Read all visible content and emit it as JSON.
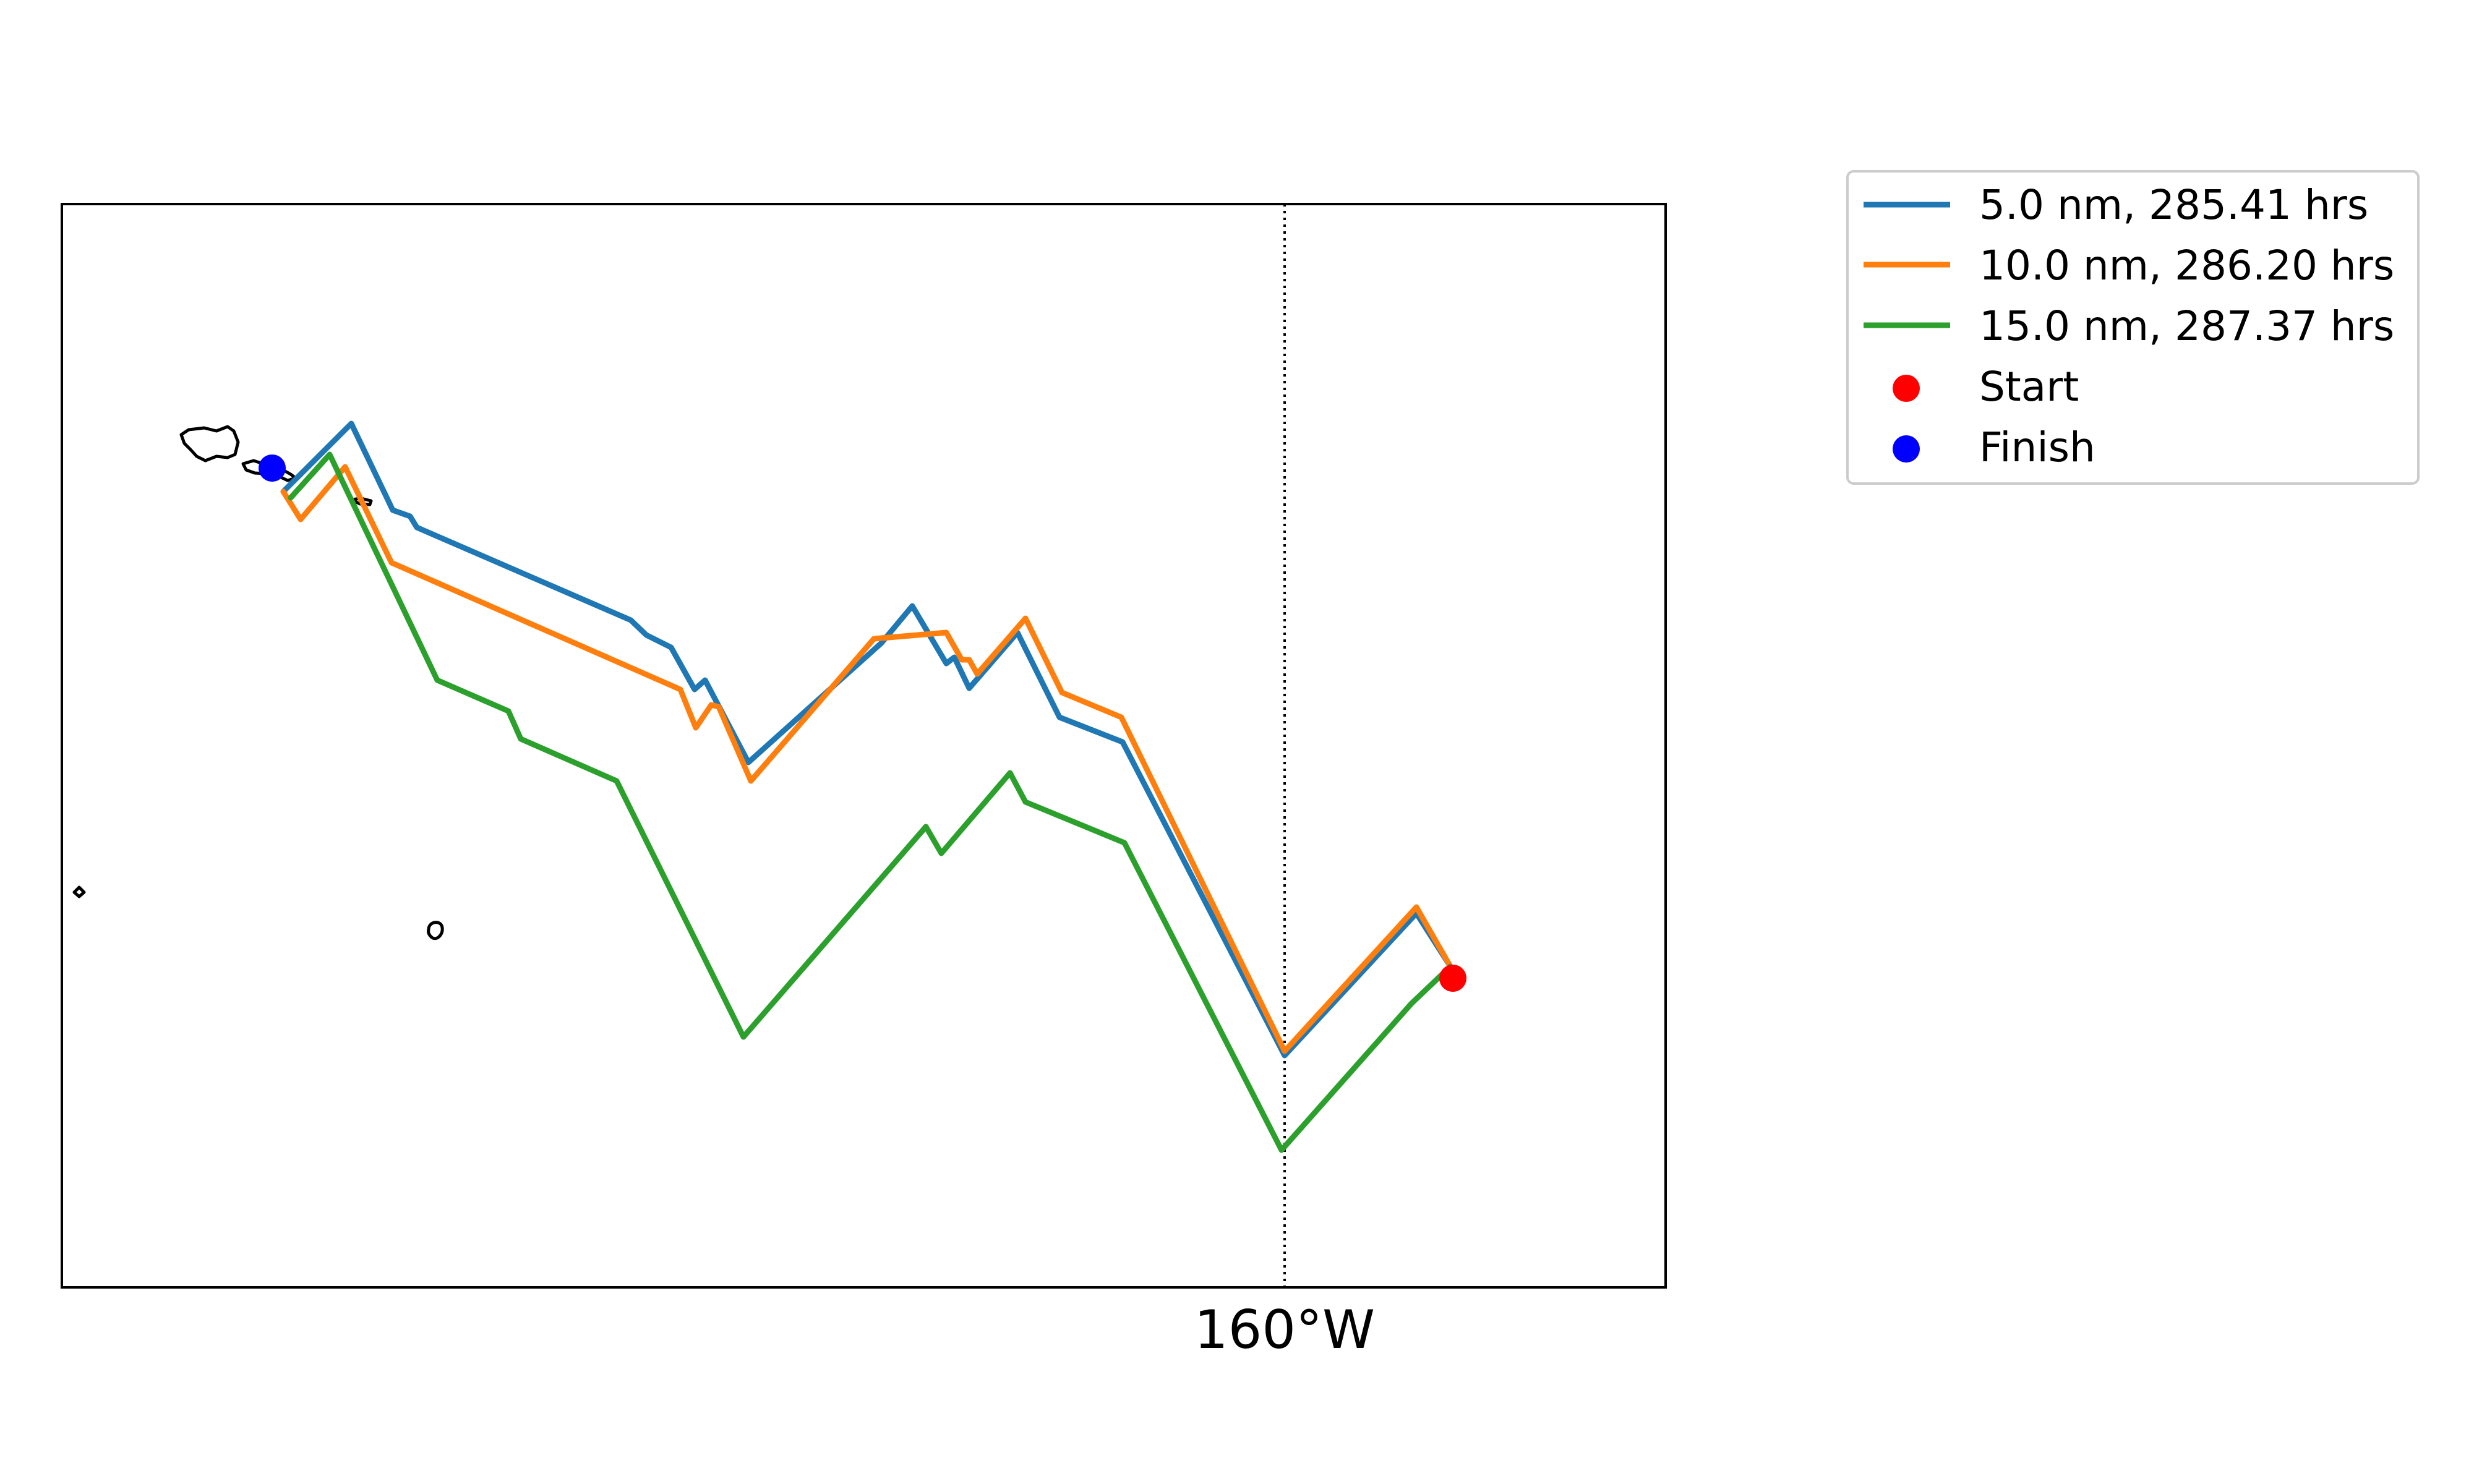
{
  "chart_data": {
    "type": "line",
    "title": "",
    "xlabel": "",
    "ylabel": "",
    "x_ticks": [
      {
        "label": "160°W",
        "lon": -160
      }
    ],
    "meridian_style": "dotted",
    "series": [
      {
        "name": "5.0 nm, 285.41 hrs",
        "color": "#1f77b4"
      },
      {
        "name": "10.0 nm, 286.20 hrs",
        "color": "#ff7f0e"
      },
      {
        "name": "15.0 nm, 287.37 hrs",
        "color": "#2ca02c"
      }
    ],
    "markers": [
      {
        "name": "Start",
        "color": "#ff0000"
      },
      {
        "name": "Finish",
        "color": "#0000ff"
      }
    ],
    "legend_position": "outside upper right",
    "grid": false
  }
}
